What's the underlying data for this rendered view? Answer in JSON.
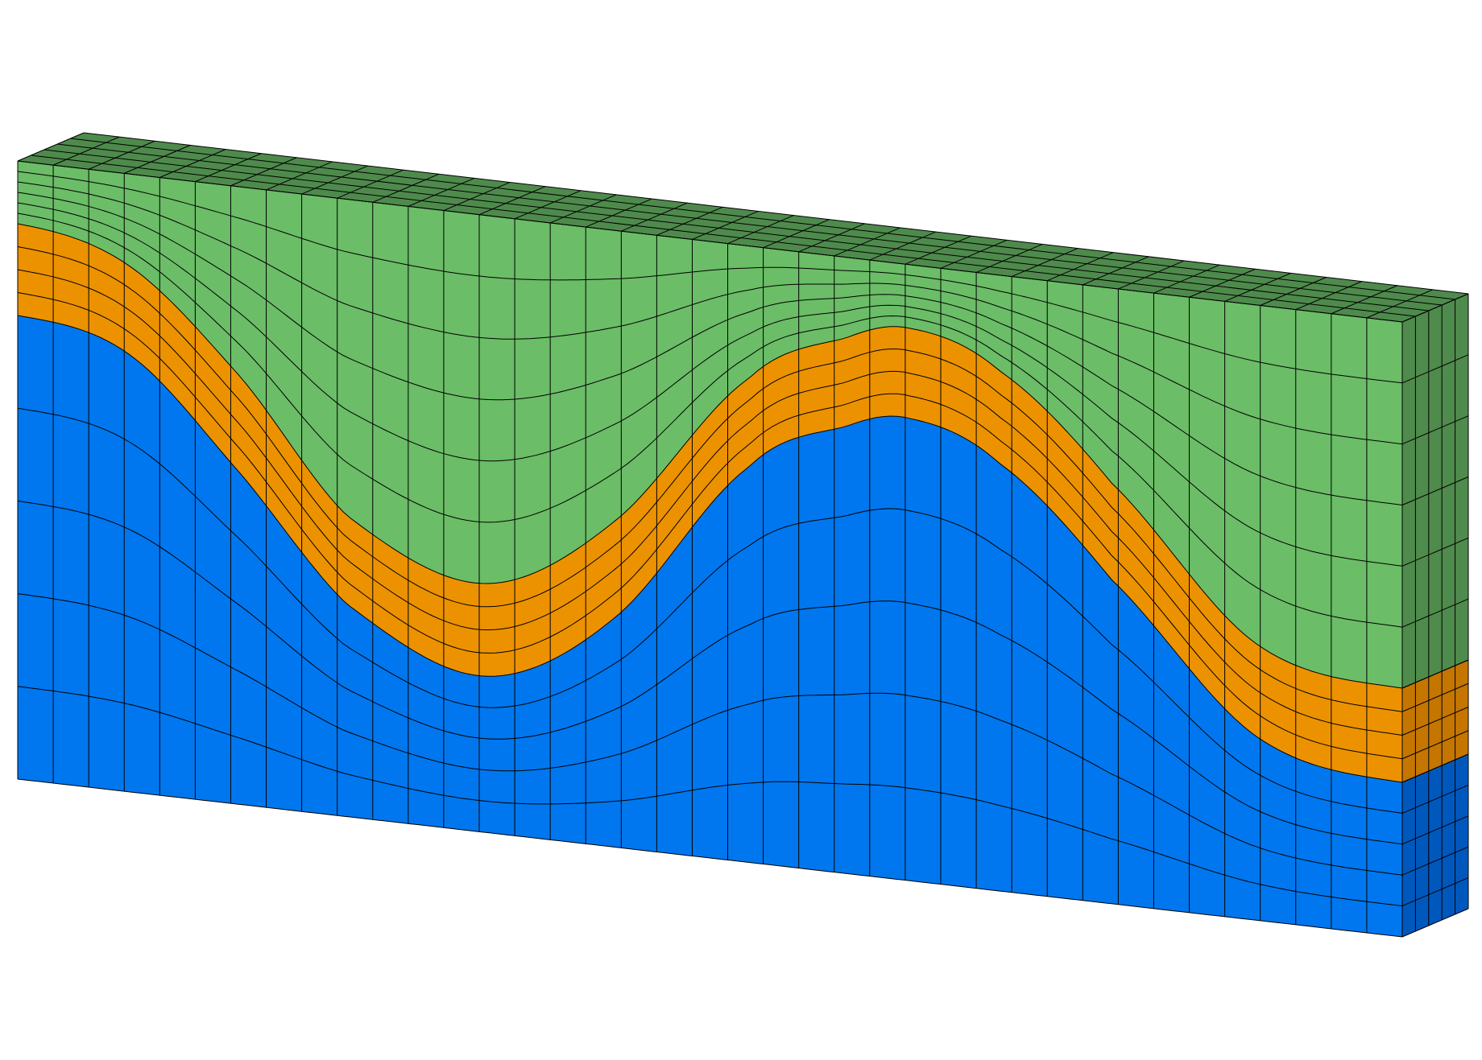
{
  "model": {
    "element_columns": 39,
    "depth_layers": 5,
    "layers": [
      {
        "id": "top-layer",
        "color": "#6bbd67",
        "side_color": "#4f8b4c",
        "top_color": "#4e8a4c",
        "sublayers": 6
      },
      {
        "id": "middle-layer",
        "color": "#ec9200",
        "side_color": "#c57600",
        "sublayers": 4
      },
      {
        "id": "bottom-layer",
        "color": "#0077ee",
        "side_color": "#0058bd",
        "sublayers": 5
      }
    ],
    "grid_line_color": "#000000"
  }
}
